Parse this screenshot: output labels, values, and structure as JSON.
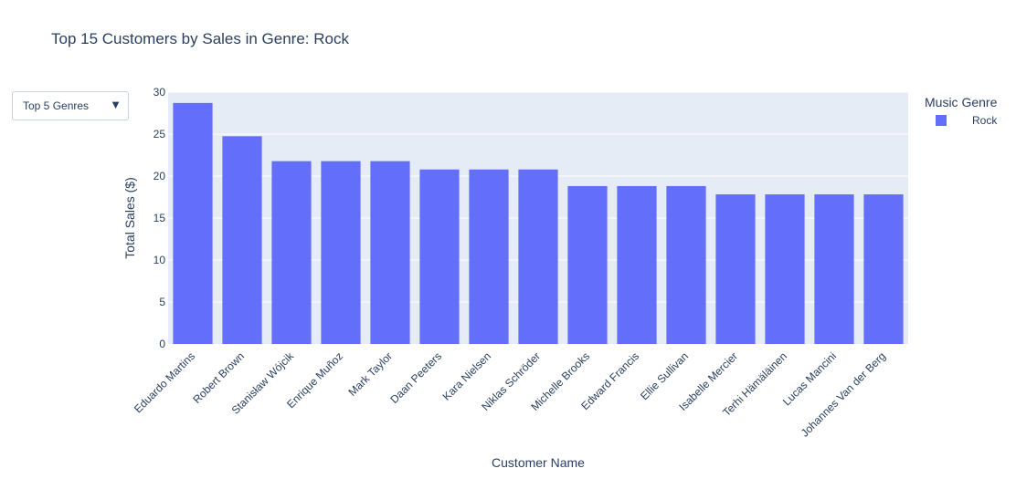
{
  "updatemenu": {
    "selected_label": "Top 5 Genres",
    "arrow_icon": "▼"
  },
  "legend": {
    "title": "Music Genre",
    "items": [
      {
        "label": "Rock",
        "color": "#636efa"
      }
    ]
  },
  "colors": {
    "plot_bg": "#e5ecf6",
    "bar": "#636efa",
    "text": "#2a3f5f",
    "grid": "#ffffff"
  },
  "chart_data": {
    "type": "bar",
    "title": "Top 15 Customers by Sales in Genre: Rock",
    "xlabel": "Customer Name",
    "ylabel": "Total Sales ($)",
    "ylim": [
      0,
      30
    ],
    "yticks": [
      0,
      5,
      10,
      15,
      20,
      25,
      30
    ],
    "grid": true,
    "legend_position": "top-right",
    "categories": [
      "Eduardo Martins",
      "Robert Brown",
      "Stanisław Wójcik",
      "Enrique Muñoz",
      "Mark Taylor",
      "Daan Peeters",
      "Kara Nielsen",
      "Niklas Schröder",
      "Michelle Brooks",
      "Edward Francis",
      "Ellie Sullivan",
      "Isabelle Mercier",
      "Terhi Hämäläinen",
      "Lucas Mancini",
      "Johannes Van der Berg"
    ],
    "series": [
      {
        "name": "Rock",
        "values": [
          28.71,
          24.75,
          21.78,
          21.78,
          21.78,
          20.79,
          20.79,
          20.79,
          18.81,
          18.81,
          18.81,
          17.82,
          17.82,
          17.82,
          17.82
        ]
      }
    ]
  }
}
